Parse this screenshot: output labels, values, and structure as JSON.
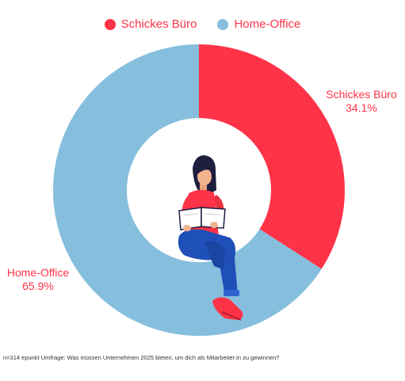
{
  "chart_data": {
    "type": "pie",
    "donut": true,
    "categories": [
      "Schickes Büro",
      "Home-Office"
    ],
    "values": [
      34.1,
      65.9
    ],
    "value_labels": [
      "34.1%",
      "65.9%"
    ],
    "colors": [
      "#FF3347",
      "#86BEDD"
    ],
    "label_color": "#FF3347",
    "legend_placement": "top-center",
    "start": "top",
    "direction": "clockwise",
    "title": "",
    "xlabel": "",
    "ylabel": ""
  },
  "legend": {
    "items": [
      {
        "label": "Schickes Büro",
        "color": "#FF3347"
      },
      {
        "label": "Home-Office",
        "color": "#86BEDD"
      }
    ]
  },
  "illustration": {
    "icon": "woman-reading-book-icon"
  },
  "footnote": "n=314 epunkt Umfrage: Was müssen Unternehmen 2025 bieten, um dich als Mitarbeiter:in zu gewinnen?"
}
